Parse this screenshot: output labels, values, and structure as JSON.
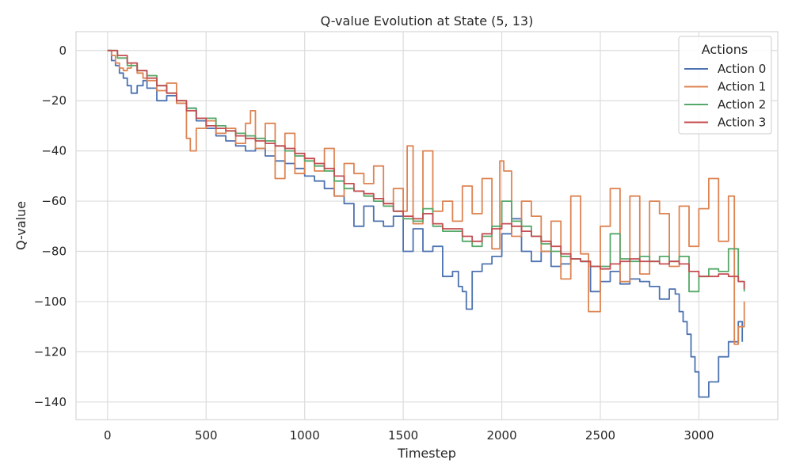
{
  "chart_data": {
    "type": "line",
    "title": "Q-value Evolution at State (5, 13)",
    "xlabel": "Timestep",
    "ylabel": "Q-value",
    "xlim": [
      -160,
      3400
    ],
    "ylim": [
      -147,
      7.5
    ],
    "xticks": [
      0,
      500,
      1000,
      1500,
      2000,
      2500,
      3000
    ],
    "yticks": [
      0,
      -20,
      -40,
      -60,
      -80,
      -100,
      -120,
      -140
    ],
    "xtick_labels": [
      "0",
      "500",
      "1000",
      "1500",
      "2000",
      "2500",
      "3000"
    ],
    "ytick_labels": [
      "0",
      "−20",
      "−40",
      "−60",
      "−80",
      "−100",
      "−120",
      "−140"
    ],
    "grid": true,
    "legend": {
      "title": "Actions",
      "position": "top-right"
    },
    "series": [
      {
        "name": "Action 0",
        "color": "#4c72b0",
        "x": [
          0,
          20,
          40,
          60,
          80,
          100,
          120,
          150,
          180,
          200,
          250,
          300,
          350,
          400,
          450,
          500,
          550,
          600,
          650,
          700,
          750,
          800,
          850,
          900,
          950,
          1000,
          1050,
          1100,
          1150,
          1200,
          1250,
          1300,
          1350,
          1400,
          1450,
          1500,
          1550,
          1600,
          1650,
          1700,
          1750,
          1780,
          1800,
          1820,
          1850,
          1900,
          1950,
          2000,
          2050,
          2100,
          2150,
          2200,
          2250,
          2300,
          2350,
          2400,
          2450,
          2500,
          2550,
          2600,
          2650,
          2700,
          2750,
          2800,
          2850,
          2880,
          2900,
          2920,
          2940,
          2960,
          2980,
          3000,
          3050,
          3100,
          3150,
          3200,
          3220
        ],
        "y": [
          0,
          -4,
          -6,
          -9,
          -11,
          -14,
          -17,
          -14,
          -12,
          -15,
          -20,
          -18,
          -21,
          -23,
          -28,
          -31,
          -34,
          -36,
          -38,
          -40,
          -39,
          -42,
          -44,
          -45,
          -47,
          -50,
          -52,
          -55,
          -58,
          -61,
          -70,
          -62,
          -68,
          -70,
          -66,
          -80,
          -71,
          -80,
          -78,
          -90,
          -88,
          -94,
          -96,
          -103,
          -88,
          -85,
          -82,
          -73,
          -67,
          -80,
          -84,
          -80,
          -86,
          -85,
          -83,
          -84,
          -96,
          -92,
          -88,
          -93,
          -91,
          -92,
          -94,
          -99,
          -95,
          -97,
          -104,
          -108,
          -113,
          -122,
          -128,
          -138,
          -132,
          -122,
          -116,
          -108,
          -116
        ]
      },
      {
        "name": "Action 1",
        "color": "#dd8452",
        "x": [
          0,
          20,
          40,
          60,
          80,
          100,
          120,
          150,
          180,
          200,
          250,
          300,
          350,
          400,
          420,
          450,
          500,
          550,
          600,
          650,
          700,
          725,
          750,
          800,
          850,
          900,
          950,
          1000,
          1050,
          1100,
          1150,
          1200,
          1250,
          1300,
          1350,
          1400,
          1450,
          1500,
          1520,
          1550,
          1600,
          1650,
          1700,
          1750,
          1800,
          1850,
          1900,
          1950,
          1990,
          2010,
          2050,
          2100,
          2150,
          2200,
          2250,
          2300,
          2350,
          2400,
          2440,
          2500,
          2550,
          2600,
          2650,
          2700,
          2750,
          2800,
          2850,
          2900,
          2950,
          3000,
          3050,
          3100,
          3150,
          3180,
          3200,
          3230
        ],
        "y": [
          0,
          -2,
          -5,
          -7,
          -8,
          -7,
          -5,
          -9,
          -11,
          -12,
          -16,
          -13,
          -21,
          -35,
          -40,
          -31,
          -28,
          -33,
          -31,
          -37,
          -29,
          -24,
          -39,
          -29,
          -51,
          -33,
          -49,
          -43,
          -48,
          -39,
          -58,
          -45,
          -49,
          -53,
          -46,
          -61,
          -55,
          -64,
          -38,
          -69,
          -40,
          -64,
          -60,
          -68,
          -54,
          -65,
          -51,
          -79,
          -44,
          -48,
          -74,
          -60,
          -66,
          -80,
          -68,
          -91,
          -58,
          -81,
          -104,
          -70,
          -55,
          -92,
          -58,
          -89,
          -60,
          -65,
          -86,
          -62,
          -78,
          -63,
          -51,
          -76,
          -58,
          -117,
          -110,
          -100
        ]
      },
      {
        "name": "Action 2",
        "color": "#55a868",
        "x": [
          0,
          50,
          100,
          150,
          200,
          250,
          300,
          350,
          400,
          450,
          500,
          550,
          600,
          650,
          700,
          750,
          800,
          850,
          900,
          950,
          1000,
          1050,
          1100,
          1150,
          1200,
          1250,
          1300,
          1350,
          1400,
          1450,
          1500,
          1550,
          1600,
          1650,
          1700,
          1750,
          1800,
          1850,
          1900,
          1950,
          2000,
          2050,
          2100,
          2150,
          2200,
          2250,
          2300,
          2350,
          2400,
          2450,
          2500,
          2550,
          2600,
          2650,
          2700,
          2750,
          2800,
          2850,
          2900,
          2950,
          3000,
          3050,
          3100,
          3150,
          3200,
          3230
        ],
        "y": [
          0,
          -3,
          -6,
          -8,
          -10,
          -14,
          -17,
          -20,
          -23,
          -27,
          -27,
          -30,
          -32,
          -33,
          -34,
          -35,
          -36,
          -38,
          -40,
          -42,
          -44,
          -46,
          -48,
          -52,
          -55,
          -56,
          -58,
          -60,
          -62,
          -64,
          -67,
          -68,
          -63,
          -70,
          -72,
          -72,
          -76,
          -78,
          -74,
          -70,
          -60,
          -68,
          -70,
          -74,
          -77,
          -80,
          -82,
          -83,
          -84,
          -86,
          -86,
          -73,
          -83,
          -84,
          -82,
          -84,
          -82,
          -84,
          -82,
          -96,
          -90,
          -87,
          -88,
          -79,
          -92,
          -96
        ]
      },
      {
        "name": "Action 3",
        "color": "#c44e52",
        "x": [
          0,
          50,
          100,
          150,
          200,
          250,
          300,
          350,
          400,
          450,
          500,
          550,
          600,
          650,
          700,
          750,
          800,
          850,
          900,
          950,
          1000,
          1050,
          1100,
          1150,
          1200,
          1250,
          1300,
          1350,
          1400,
          1450,
          1500,
          1550,
          1600,
          1650,
          1700,
          1750,
          1800,
          1850,
          1900,
          1950,
          2000,
          2050,
          2100,
          2150,
          2200,
          2250,
          2300,
          2350,
          2400,
          2450,
          2500,
          2550,
          2600,
          2650,
          2700,
          2750,
          2800,
          2850,
          2900,
          2950,
          3000,
          3050,
          3100,
          3150,
          3200,
          3230
        ],
        "y": [
          0,
          -2,
          -5,
          -8,
          -11,
          -14,
          -17,
          -20,
          -24,
          -27,
          -30,
          -31,
          -32,
          -34,
          -35,
          -36,
          -37,
          -38,
          -39,
          -41,
          -43,
          -45,
          -47,
          -50,
          -53,
          -56,
          -57,
          -59,
          -61,
          -64,
          -66,
          -67,
          -65,
          -69,
          -71,
          -71,
          -74,
          -76,
          -73,
          -71,
          -69,
          -70,
          -72,
          -74,
          -76,
          -78,
          -81,
          -83,
          -84,
          -86,
          -87,
          -85,
          -84,
          -83,
          -84,
          -84,
          -85,
          -84,
          -85,
          -88,
          -90,
          -90,
          -89,
          -90,
          -92,
          -95
        ]
      }
    ]
  }
}
